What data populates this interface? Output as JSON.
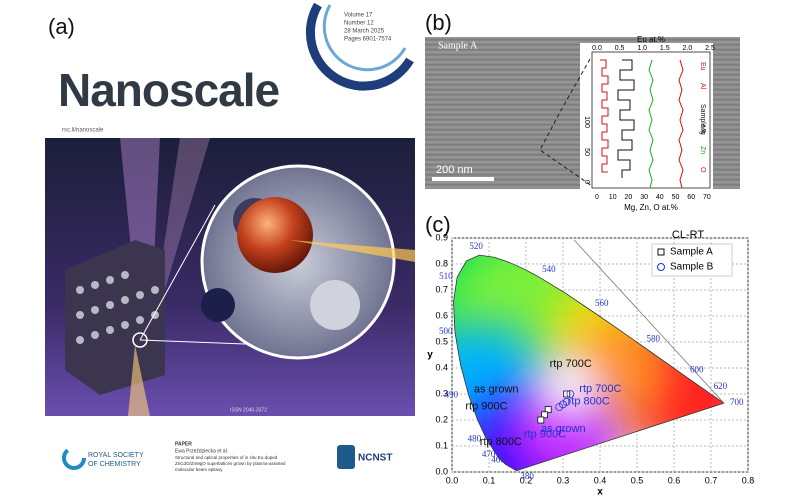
{
  "panel_labels": [
    "(a)",
    "(b)",
    "(c)"
  ],
  "cover": {
    "volume": "Volume 17",
    "number": "Number 12",
    "date": "28 March 2025",
    "pages": "Pages 6901-7574",
    "journal": "Nanoscale",
    "url": "rsc.li/nanoscale",
    "issn": "ISSN 2040-3372",
    "publisher": [
      "ROYAL SOCIETY",
      "OF CHEMISTRY"
    ],
    "paper_kind": "PAPER",
    "authors": "Ewa Przeździecka et al.",
    "paper_title": [
      "Structural and optical properties of in situ Eu-doped",
      "ZnCdO/ZnMgO superlattices grown by plasma-assisted",
      "molecular beam epitaxy"
    ],
    "partner": "NCNST"
  },
  "tem": {
    "sample": "Sample A",
    "scale_bar": "200 nm",
    "profile": {
      "top_axis_label": "Eu at.%",
      "bottom_axis_label": "Mg, Zn, O at.%",
      "top_ticks": [
        "0.0",
        "0.5",
        "1.0",
        "1.5",
        "2.0",
        "2.5"
      ],
      "bottom_ticks": [
        "0",
        "10",
        "20",
        "30",
        "40",
        "50",
        "60",
        "70"
      ],
      "depth_ticks": [
        "100",
        "50",
        "0"
      ],
      "legend": [
        "Eu",
        "Al",
        "Sample A",
        "Mg",
        "Zn",
        "O"
      ]
    }
  },
  "chart_data": {
    "type": "scatter",
    "title": "CL-RT",
    "x_label": "x",
    "y_label": "y",
    "xlim": [
      0,
      0.8
    ],
    "ylim": [
      0,
      0.9
    ],
    "xticks": [
      {
        "value": 0,
        "label": "0.0"
      },
      0.1,
      0.2,
      0.3,
      0.4,
      0.5,
      0.6,
      0.7,
      0.8
    ],
    "yticks": [
      {
        "value": 0,
        "label": "0.0"
      },
      0.1,
      0.2,
      0.3,
      0.4,
      0.5,
      0.6,
      0.7,
      0.8,
      0.9
    ],
    "grid": true,
    "legend": "upper right",
    "wavelength_labels": [
      "380",
      "460",
      "470",
      "480",
      "490",
      "500",
      "510",
      "520",
      "540",
      "560",
      "580",
      "600",
      "620",
      "700"
    ],
    "series": [
      {
        "name": "Sample A",
        "marker": "square",
        "color": "#111111",
        "point_labels": [
          "as grown",
          "rtp 700C",
          "rtp 900C",
          "rtp 800C"
        ],
        "x": [
          0.26,
          0.31,
          0.25,
          0.24
        ],
        "values": [
          0.24,
          0.3,
          0.22,
          0.2
        ]
      },
      {
        "name": "Sample B",
        "marker": "circle",
        "color": "#2233cc",
        "point_labels": [
          "rtp 700C",
          "rtp 800C",
          "as grown",
          "rtp 900C"
        ],
        "x": [
          0.32,
          0.31,
          0.29,
          0.3
        ],
        "values": [
          0.3,
          0.27,
          0.25,
          0.26
        ]
      }
    ]
  }
}
